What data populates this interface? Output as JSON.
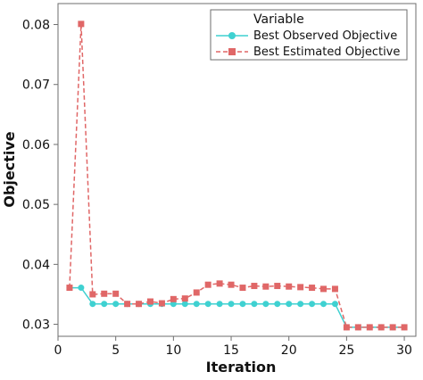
{
  "chart_data": {
    "type": "line",
    "xlabel": "Iteration",
    "ylabel": "Objective",
    "xlim": [
      0,
      31
    ],
    "ylim": [
      0.028,
      0.0835
    ],
    "xticks": [
      "0",
      "5",
      "10",
      "15",
      "20",
      "25",
      "30"
    ],
    "yticks": [
      "0.03",
      "0.04",
      "0.05",
      "0.06",
      "0.07",
      "0.08"
    ],
    "legend_title": "Variable",
    "legend_position": "top-right",
    "grid": false,
    "x": [
      1,
      2,
      3,
      4,
      5,
      6,
      7,
      8,
      9,
      10,
      11,
      12,
      13,
      14,
      15,
      16,
      17,
      18,
      19,
      20,
      21,
      22,
      23,
      24,
      25,
      26,
      27,
      28,
      29,
      30
    ],
    "series": [
      {
        "name": "Best Observed Objective",
        "color": "#3fd1d1",
        "marker": "circle",
        "line": "solid",
        "values": [
          0.0361,
          0.0361,
          0.0334,
          0.0334,
          0.0334,
          0.0334,
          0.0334,
          0.0334,
          0.0334,
          0.0334,
          0.0334,
          0.0334,
          0.0334,
          0.0334,
          0.0334,
          0.0334,
          0.0334,
          0.0334,
          0.0334,
          0.0334,
          0.0334,
          0.0334,
          0.0334,
          0.0334,
          0.0295,
          0.0295,
          0.0295,
          0.0295,
          0.0295,
          0.0295
        ]
      },
      {
        "name": "Best Estimated Objective",
        "color": "#e06767",
        "marker": "square",
        "line": "dashed",
        "values": [
          0.0361,
          0.0801,
          0.035,
          0.0351,
          0.0351,
          0.0334,
          0.0334,
          0.0338,
          0.0335,
          0.0342,
          0.0343,
          0.0353,
          0.0366,
          0.0368,
          0.0366,
          0.0361,
          0.0364,
          0.0363,
          0.0364,
          0.0363,
          0.0362,
          0.0361,
          0.0359,
          0.0359,
          0.0295,
          0.0295,
          0.0295,
          0.0295,
          0.0295,
          0.0295
        ]
      }
    ]
  }
}
